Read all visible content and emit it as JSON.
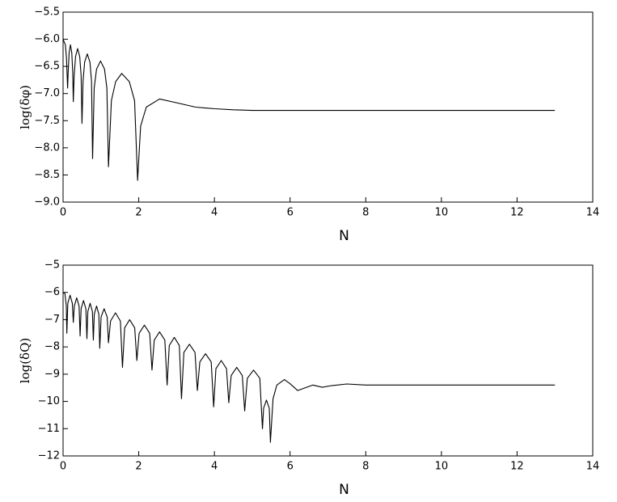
{
  "chart_data": [
    {
      "type": "line",
      "x_label": "N",
      "y_label": "log(δφ)",
      "color": "#000000",
      "xlim": [
        0,
        14
      ],
      "xticks": [
        0,
        2,
        4,
        6,
        8,
        10,
        12,
        14
      ],
      "ylim": [
        -9,
        -5.5
      ],
      "yticks": [
        {
          "value": -5.5,
          "label": "−5.5"
        },
        {
          "value": -6,
          "label": "−6.0"
        },
        {
          "value": -6.5,
          "label": "−6.5"
        },
        {
          "value": -7,
          "label": "−7.0"
        },
        {
          "value": -7.5,
          "label": "−7.5"
        },
        {
          "value": -8,
          "label": "−8.0"
        },
        {
          "value": -8.5,
          "label": "−8.5"
        },
        {
          "value": -9,
          "label": "−9.0"
        }
      ],
      "x": [
        0,
        0.03,
        0.06,
        0.09,
        0.12,
        0.135,
        0.16,
        0.195,
        0.23,
        0.255,
        0.27,
        0.293,
        0.33,
        0.385,
        0.44,
        0.477,
        0.5,
        0.528,
        0.57,
        0.64,
        0.71,
        0.752,
        0.78,
        0.822,
        0.885,
        0.99,
        1.095,
        1.158,
        1.2,
        1.277,
        1.39,
        1.55,
        1.75,
        1.89,
        1.97,
        2.05,
        2.2,
        2.55,
        3.0,
        3.5,
        4.0,
        4.5,
        5.0,
        13
      ],
      "values": [
        -6.0,
        -6.05,
        -6.1,
        -6.35,
        -6.9,
        -6.6,
        -6.25,
        -6.1,
        -6.25,
        -6.6,
        -7.15,
        -6.67,
        -6.32,
        -6.17,
        -6.32,
        -6.67,
        -7.55,
        -6.77,
        -6.42,
        -6.27,
        -6.42,
        -6.77,
        -8.2,
        -6.9,
        -6.55,
        -6.4,
        -6.55,
        -6.9,
        -8.35,
        -7.13,
        -6.78,
        -6.63,
        -6.78,
        -7.13,
        -8.6,
        -7.6,
        -7.25,
        -7.1,
        -7.17,
        -7.25,
        -7.28,
        -7.3,
        -7.31,
        -7.31
      ]
    },
    {
      "type": "line",
      "x_label": "N",
      "y_label": "log(δQ)",
      "color": "#000000",
      "xlim": [
        0,
        14
      ],
      "xticks": [
        0,
        2,
        4,
        6,
        8,
        10,
        12,
        14
      ],
      "ylim": [
        -12,
        -5
      ],
      "yticks": [
        {
          "value": -5,
          "label": "−5"
        },
        {
          "value": -6,
          "label": "−6"
        },
        {
          "value": -7,
          "label": "−7"
        },
        {
          "value": -8,
          "label": "−8"
        },
        {
          "value": -9,
          "label": "−9"
        },
        {
          "value": -10,
          "label": "−10"
        },
        {
          "value": -11,
          "label": "−11"
        },
        {
          "value": -12,
          "label": "−12"
        }
      ],
      "x": [
        0,
        0.05,
        0.085,
        0.1,
        0.125,
        0.185,
        0.245,
        0.27,
        0.297,
        0.36,
        0.423,
        0.45,
        0.477,
        0.54,
        0.603,
        0.63,
        0.655,
        0.715,
        0.775,
        0.8,
        0.825,
        0.885,
        0.945,
        0.97,
        1.005,
        1.085,
        1.165,
        1.2,
        1.255,
        1.385,
        1.515,
        1.57,
        1.627,
        1.76,
        1.893,
        1.95,
        2.01,
        2.15,
        2.29,
        2.35,
        2.41,
        2.55,
        2.69,
        2.75,
        2.807,
        2.94,
        3.073,
        3.13,
        3.193,
        3.34,
        3.487,
        3.55,
        3.615,
        3.765,
        3.915,
        3.98,
        4.04,
        4.18,
        4.32,
        4.38,
        4.443,
        4.59,
        4.737,
        4.8,
        4.87,
        5.035,
        5.2,
        5.27,
        5.3,
        5.375,
        5.45,
        5.48,
        5.55,
        5.65,
        5.85,
        6.0,
        6.2,
        6.4,
        6.6,
        6.85,
        7.1,
        7.5,
        8.0,
        9,
        13
      ],
      "values": [
        -6.0,
        -6.05,
        -6.5,
        -7.5,
        -6.4,
        -6.1,
        -6.4,
        -7.1,
        -6.5,
        -6.2,
        -6.5,
        -7.6,
        -6.6,
        -6.3,
        -6.6,
        -7.7,
        -6.7,
        -6.4,
        -6.7,
        -7.75,
        -6.8,
        -6.5,
        -6.8,
        -8.05,
        -6.9,
        -6.6,
        -6.9,
        -7.85,
        -7.05,
        -6.75,
        -7.05,
        -8.75,
        -7.3,
        -7.0,
        -7.3,
        -8.5,
        -7.5,
        -7.2,
        -7.5,
        -8.85,
        -7.75,
        -7.45,
        -7.75,
        -9.4,
        -7.95,
        -7.65,
        -7.95,
        -9.9,
        -8.2,
        -7.9,
        -8.2,
        -9.6,
        -8.55,
        -8.25,
        -8.55,
        -10.2,
        -8.8,
        -8.5,
        -8.8,
        -10.05,
        -9.05,
        -8.75,
        -9.05,
        -10.35,
        -9.15,
        -8.85,
        -9.15,
        -11.0,
        -10.25,
        -9.95,
        -10.25,
        -11.5,
        -9.9,
        -9.4,
        -9.2,
        -9.35,
        -9.6,
        -9.5,
        -9.4,
        -9.48,
        -9.42,
        -9.36,
        -9.4,
        -9.4,
        -9.4
      ]
    }
  ]
}
